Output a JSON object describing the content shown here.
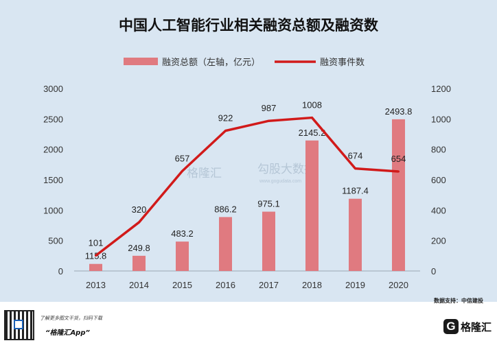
{
  "chart_data": {
    "type": "bar",
    "title": "中国人工智能行业相关融资总额及融资数",
    "categories": [
      "2013",
      "2014",
      "2015",
      "2016",
      "2017",
      "2018",
      "2019",
      "2020"
    ],
    "series": [
      {
        "name": "融资总额（左轴，亿元）",
        "type": "bar",
        "axis": "left",
        "color": "#e07a80",
        "values": [
          115.8,
          249.8,
          483.2,
          886.2,
          975.1,
          2145.2,
          1187.4,
          2493.8
        ],
        "labels": [
          "115.8",
          "249.8",
          "483.2",
          "886.2",
          "975.1",
          "2145.2",
          "1187.4",
          "2493.8"
        ]
      },
      {
        "name": "融资事件数",
        "type": "line",
        "axis": "right",
        "color": "#d11a1a",
        "values": [
          101,
          320,
          657,
          922,
          987,
          1008,
          674,
          654
        ],
        "labels": [
          "101",
          "320",
          "657",
          "922",
          "987",
          "1008",
          "674",
          "654"
        ]
      }
    ],
    "y_left": {
      "min": 0,
      "max": 3000,
      "ticks": [
        "0",
        "500",
        "1000",
        "1500",
        "2000",
        "2500",
        "3000"
      ]
    },
    "y_right": {
      "min": 0,
      "max": 1200,
      "ticks": [
        "0",
        "200",
        "400",
        "600",
        "800",
        "1000",
        "1200"
      ]
    },
    "grid": false,
    "legend": "top"
  },
  "watermark": {
    "brand": "格隆汇",
    "brand2": "勾股大数据",
    "url": "www.gogudata.com"
  },
  "source": "数据支持：中信建投",
  "footer": {
    "promo_line": "了解更多图文干货，扫码下载",
    "app_name": "“格隆汇App”",
    "logo_mark": "G",
    "logo_text": "格隆汇"
  },
  "colors": {
    "background": "#d9e6f2",
    "bar": "#e07a80",
    "line": "#d11a1a"
  }
}
